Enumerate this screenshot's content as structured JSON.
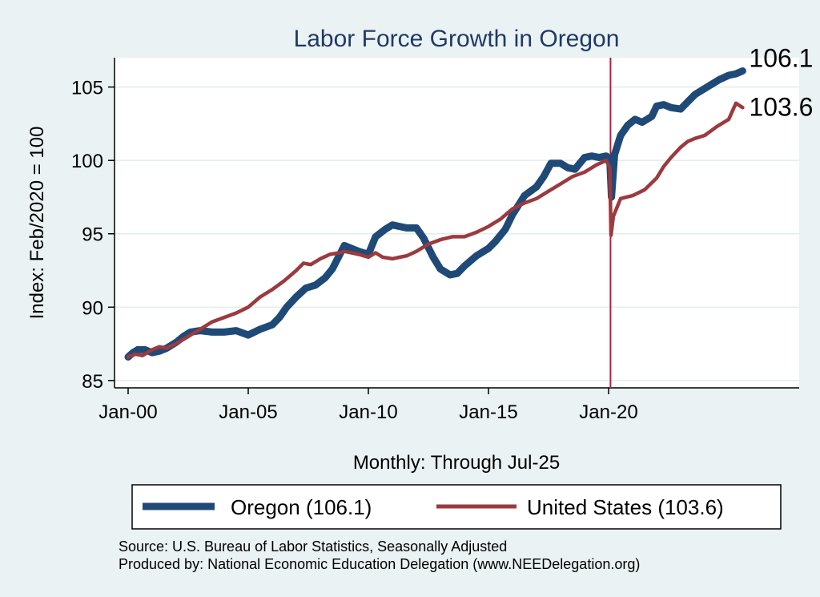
{
  "chart_data": {
    "type": "line",
    "title": "Labor Force Growth in Oregon",
    "xlabel": "Monthly: Through Jul-25",
    "ylabel": "Index: Feb/2020 = 100",
    "xlim": [
      0,
      28
    ],
    "ylim": [
      84.5,
      107
    ],
    "x_ticks": [
      0,
      5,
      10,
      15,
      20
    ],
    "x_tick_labels": [
      "Jan-00",
      "Jan-05",
      "Jan-10",
      "Jan-15",
      "Jan-20"
    ],
    "y_ticks": [
      85,
      90,
      95,
      100,
      105
    ],
    "y_tick_labels": [
      "85",
      "90",
      "95",
      "100",
      "105"
    ],
    "vline": {
      "x": 20.08,
      "color": "#c0183b"
    },
    "series": [
      {
        "name": "Oregon",
        "legend": "Oregon (106.1)",
        "end_label": "106.1",
        "color": "#1f4a77",
        "x": [
          0,
          0.2,
          0.4,
          0.7,
          1.0,
          1.3,
          1.6,
          2.0,
          2.3,
          2.6,
          3.0,
          3.5,
          4.0,
          4.5,
          5.0,
          5.5,
          6.0,
          6.3,
          6.6,
          7.0,
          7.4,
          7.8,
          8.2,
          8.5,
          9.0,
          9.3,
          9.6,
          10.0,
          10.3,
          10.7,
          11.0,
          11.3,
          11.6,
          12.0,
          12.3,
          12.7,
          13.0,
          13.4,
          13.7,
          14.0,
          14.5,
          15.0,
          15.3,
          15.7,
          16.0,
          16.5,
          17.0,
          17.3,
          17.6,
          18.0,
          18.3,
          18.6,
          19.0,
          19.3,
          19.6,
          19.9,
          20.05,
          20.12,
          20.25,
          20.5,
          20.8,
          21.1,
          21.4,
          21.8,
          22.0,
          22.3,
          22.6,
          23.0,
          23.3,
          23.6,
          24.0,
          24.3,
          24.6,
          25.0,
          25.3,
          25.58
        ],
        "values": [
          86.6,
          86.9,
          87.1,
          87.1,
          86.9,
          87.0,
          87.2,
          87.6,
          88.0,
          88.3,
          88.4,
          88.3,
          88.3,
          88.4,
          88.1,
          88.5,
          88.8,
          89.3,
          90.0,
          90.7,
          91.3,
          91.5,
          92.0,
          92.6,
          94.2,
          94.0,
          93.8,
          93.6,
          94.8,
          95.3,
          95.6,
          95.5,
          95.4,
          95.4,
          94.7,
          93.4,
          92.6,
          92.2,
          92.3,
          92.8,
          93.5,
          94.0,
          94.5,
          95.3,
          96.3,
          97.6,
          98.2,
          98.9,
          99.8,
          99.8,
          99.5,
          99.4,
          100.2,
          100.3,
          100.2,
          100.3,
          100.1,
          97.5,
          100.4,
          101.7,
          102.4,
          102.8,
          102.6,
          103.0,
          103.7,
          103.8,
          103.6,
          103.5,
          104.0,
          104.5,
          104.9,
          105.2,
          105.5,
          105.8,
          105.9,
          106.1
        ]
      },
      {
        "name": "United States",
        "legend": "United States (103.6)",
        "end_label": "103.6",
        "color": "#9b3a3f",
        "x": [
          0,
          0.3,
          0.6,
          1.0,
          1.3,
          1.6,
          2.0,
          2.5,
          3.0,
          3.5,
          4.0,
          4.5,
          5.0,
          5.5,
          6.0,
          6.5,
          7.0,
          7.3,
          7.6,
          8.0,
          8.4,
          8.8,
          9.0,
          9.3,
          9.6,
          10.0,
          10.3,
          10.6,
          11.0,
          11.3,
          11.6,
          12.0,
          12.5,
          13.0,
          13.5,
          14.0,
          14.5,
          15.0,
          15.5,
          16.0,
          16.5,
          17.0,
          17.5,
          18.0,
          18.5,
          19.0,
          19.5,
          19.9,
          20.05,
          20.1,
          20.2,
          20.5,
          21.0,
          21.5,
          22.0,
          22.3,
          22.6,
          23.0,
          23.3,
          23.6,
          24.0,
          24.5,
          25.0,
          25.3,
          25.58
        ],
        "values": [
          86.6,
          86.8,
          86.7,
          87.1,
          87.3,
          87.2,
          87.5,
          88.0,
          88.5,
          89.0,
          89.3,
          89.6,
          90.0,
          90.7,
          91.2,
          91.8,
          92.5,
          93.0,
          92.9,
          93.3,
          93.6,
          93.7,
          93.8,
          93.7,
          93.6,
          93.4,
          93.7,
          93.4,
          93.3,
          93.4,
          93.5,
          93.8,
          94.3,
          94.6,
          94.8,
          94.8,
          95.1,
          95.5,
          96.0,
          96.7,
          97.1,
          97.4,
          97.9,
          98.4,
          98.9,
          99.2,
          99.7,
          100.0,
          99.5,
          94.9,
          96.2,
          97.4,
          97.6,
          98.0,
          98.8,
          99.6,
          100.2,
          100.9,
          101.3,
          101.5,
          101.7,
          102.3,
          102.8,
          103.9,
          103.6
        ]
      }
    ],
    "notes": [
      "Source: U.S. Bureau of Labor Statistics, Seasonally Adjusted",
      "Produced by: National Economic Education Delegation (www.NEEDelegation.org)"
    ]
  }
}
